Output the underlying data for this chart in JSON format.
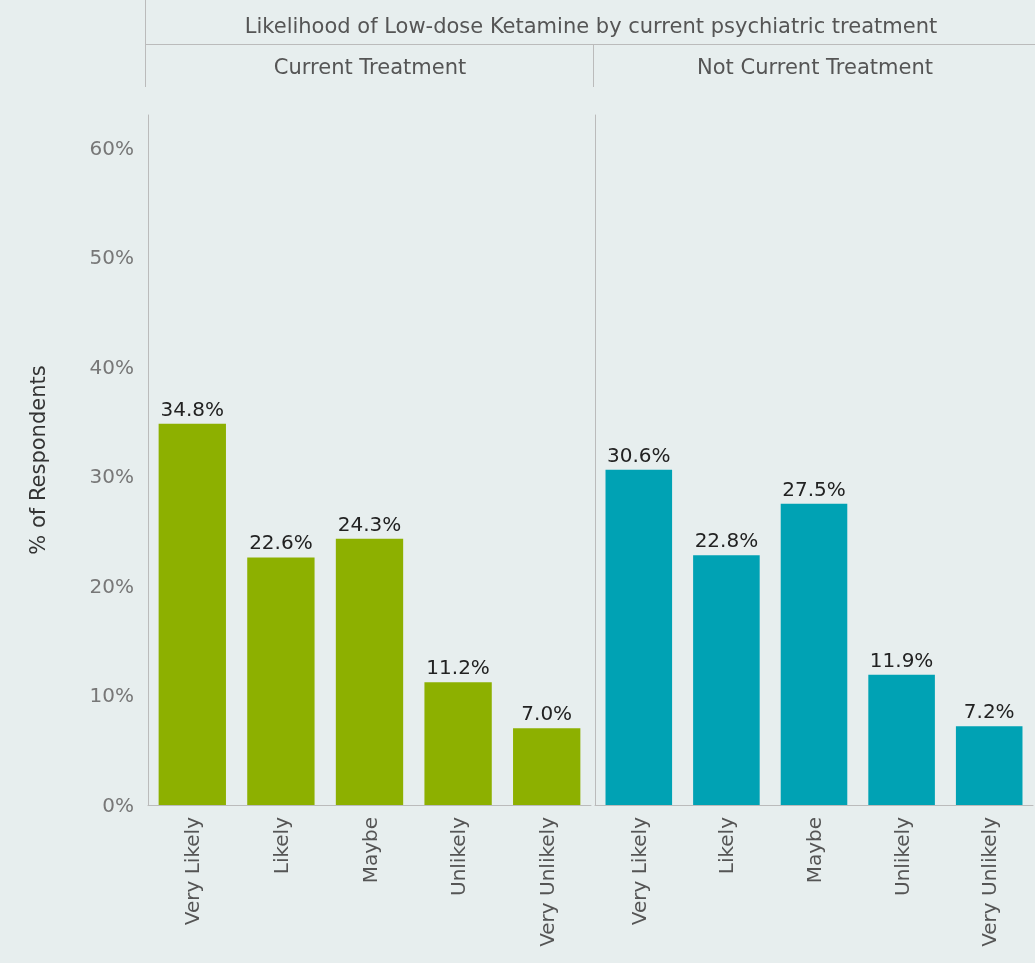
{
  "chart_data": [
    {
      "type": "bar",
      "title": "Likelihood of Low-dose Ketamine by current psychiatric treatment",
      "subtitle": "Current Treatment",
      "ylabel": "% of Respondents",
      "categories": [
        "Very Likely",
        "Likely",
        "Maybe",
        "Unlikely",
        "Very Unlikely"
      ],
      "values": [
        34.8,
        22.6,
        24.3,
        11.2,
        7.0
      ],
      "value_labels": [
        "34.8%",
        "22.6%",
        "24.3%",
        "11.2%",
        "7.0%"
      ],
      "color": "#8db000",
      "ylim": [
        0,
        63
      ],
      "yticks": [
        {
          "value": 0,
          "label": "0%"
        },
        {
          "value": 10,
          "label": "10%"
        },
        {
          "value": 20,
          "label": "20%"
        },
        {
          "value": 30,
          "label": "30%"
        },
        {
          "value": 40,
          "label": "40%"
        },
        {
          "value": 50,
          "label": "50%"
        },
        {
          "value": 60,
          "label": "60%"
        }
      ]
    },
    {
      "type": "bar",
      "subtitle": "Not Current Treatment",
      "categories": [
        "Very Likely",
        "Likely",
        "Maybe",
        "Unlikely",
        "Very Unlikely"
      ],
      "values": [
        30.6,
        22.8,
        27.5,
        11.9,
        7.2
      ],
      "value_labels": [
        "30.6%",
        "22.8%",
        "27.5%",
        "11.9%",
        "7.2%"
      ],
      "color": "#00a2b4",
      "ylim": [
        0,
        63
      ],
      "tick_labels": "x"
    }
  ]
}
